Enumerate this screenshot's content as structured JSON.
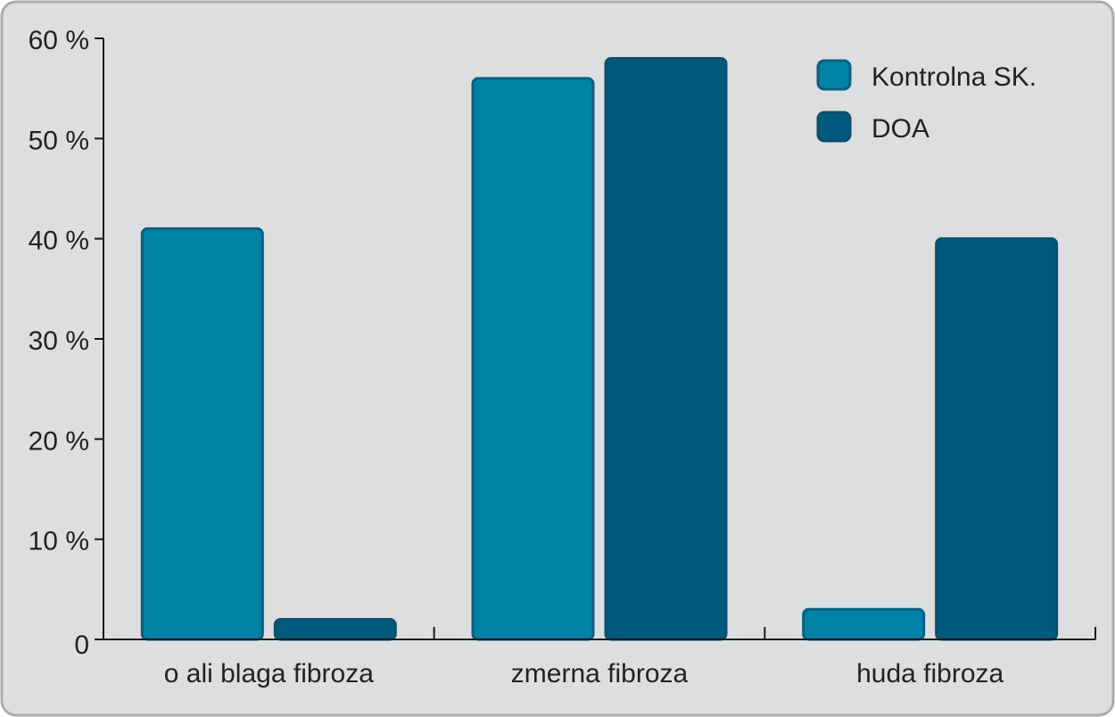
{
  "colors": {
    "background": "#dcdedf",
    "frame": "#a9acae",
    "axis": "#1a1a1a",
    "series_fill": [
      "#0082a6",
      "#005a7d"
    ],
    "series_stroke": [
      "#0b5f80",
      "#0b4f6e"
    ]
  },
  "chart_data": {
    "type": "bar",
    "categories": [
      "o ali blaga fibroza",
      "zmerna fibroza",
      "huda fibroza"
    ],
    "series": [
      {
        "name": "Kontrolna SK.",
        "values": [
          41,
          56,
          3
        ]
      },
      {
        "name": "DOA",
        "values": [
          2,
          58,
          40
        ]
      }
    ],
    "ylim": [
      0,
      60
    ],
    "yticks": [
      0,
      10,
      20,
      30,
      40,
      50,
      60
    ],
    "ytick_labels": [
      "0",
      "10 %",
      "20 %",
      "30 %",
      "40 %",
      "50 %",
      "60 %"
    ],
    "title": "",
    "xlabel": "",
    "ylabel": "",
    "grid": false,
    "legend_position": "top-right"
  }
}
